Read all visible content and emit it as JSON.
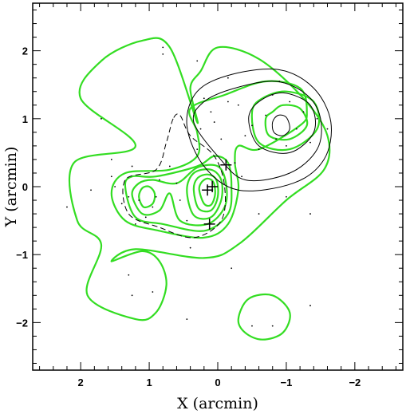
{
  "chart_data": {
    "type": "contour",
    "title": "",
    "xlabel": "X (arcmin)",
    "ylabel": "Y (arcmin)",
    "xlim": [
      2.7,
      -2.7
    ],
    "ylim": [
      -2.7,
      2.7
    ],
    "x_ticks": [
      2,
      1,
      0,
      -1,
      -2
    ],
    "x_tick_labels": [
      "2",
      "1",
      "0",
      "−1",
      "−2"
    ],
    "y_ticks": [
      2,
      1,
      0,
      -1,
      -2
    ],
    "y_tick_labels": [
      "2",
      "1",
      "0",
      "−1",
      "−2"
    ],
    "x_axis_reversed": true,
    "grid": false,
    "colors": {
      "galaxy_density_contours": "#33dd22",
      "other_contours": "#000000",
      "points": "#000000"
    },
    "green_contours": [
      {
        "level": 1,
        "points": [
          [
            1.55,
            -1.1
          ],
          [
            1.2,
            -0.92
          ],
          [
            0.2,
            -1.05
          ],
          [
            -0.3,
            -0.85
          ],
          [
            -1.0,
            -0.2
          ],
          [
            -1.55,
            0.25
          ],
          [
            -1.6,
            0.75
          ],
          [
            -1.25,
            1.3
          ],
          [
            -0.6,
            1.88
          ],
          [
            0.0,
            2.05
          ],
          [
            0.25,
            1.7
          ],
          [
            0.4,
            1.45
          ],
          [
            0.3,
            0.95
          ],
          [
            0.7,
            2.05
          ],
          [
            1.1,
            2.15
          ],
          [
            1.7,
            1.85
          ],
          [
            2.0,
            1.3
          ],
          [
            1.2,
            0.6
          ],
          [
            2.1,
            0.35
          ],
          [
            2.05,
            -0.5
          ],
          [
            1.7,
            -0.85
          ],
          [
            1.9,
            -1.6
          ],
          [
            1.2,
            -1.95
          ],
          [
            0.9,
            -1.85
          ],
          [
            0.75,
            -1.45
          ],
          [
            0.85,
            -1.1
          ],
          [
            1.1,
            -0.95
          ]
        ]
      },
      {
        "level": 2,
        "points": [
          [
            1.55,
            -0.1
          ],
          [
            1.35,
            -0.5
          ],
          [
            0.85,
            -0.65
          ],
          [
            0.2,
            -0.75
          ],
          [
            -0.15,
            -0.55
          ],
          [
            -0.3,
            -0.05
          ],
          [
            -0.25,
            0.35
          ],
          [
            -0.3,
            0.6
          ],
          [
            -0.6,
            0.55
          ],
          [
            -1.2,
            0.9
          ],
          [
            -1.3,
            1.1
          ],
          [
            -1.2,
            1.45
          ],
          [
            -0.7,
            1.55
          ],
          [
            -0.1,
            1.35
          ],
          [
            0.4,
            1.15
          ],
          [
            0.3,
            0.8
          ],
          [
            0.3,
            0.45
          ],
          [
            0.7,
            0.25
          ],
          [
            1.35,
            0.2
          ]
        ]
      },
      {
        "level": 3,
        "points": [
          [
            1.35,
            0.0
          ],
          [
            1.2,
            -0.45
          ],
          [
            0.8,
            -0.55
          ],
          [
            0.2,
            -0.65
          ],
          [
            -0.15,
            -0.4
          ],
          [
            -0.2,
            0.0
          ],
          [
            -0.15,
            0.35
          ],
          [
            0.05,
            0.45
          ],
          [
            0.3,
            0.3
          ],
          [
            0.9,
            0.15
          ],
          [
            1.25,
            0.15
          ]
        ]
      },
      {
        "level": 4,
        "points": [
          [
            1.25,
            -0.12
          ],
          [
            1.1,
            -0.4
          ],
          [
            0.85,
            -0.35
          ],
          [
            0.7,
            -0.1
          ],
          [
            0.55,
            -0.5
          ],
          [
            0.15,
            -0.55
          ],
          [
            -0.1,
            -0.3
          ],
          [
            -0.12,
            0.05
          ],
          [
            0.0,
            0.3
          ],
          [
            0.3,
            0.28
          ],
          [
            0.6,
            0.05
          ],
          [
            0.95,
            0.1
          ],
          [
            1.15,
            0.05
          ]
        ]
      },
      {
        "level": 5,
        "points": [
          [
            0.45,
            -0.05
          ],
          [
            0.35,
            -0.42
          ],
          [
            0.1,
            -0.45
          ],
          [
            -0.05,
            -0.2
          ],
          [
            -0.05,
            0.1
          ],
          [
            0.1,
            0.25
          ],
          [
            0.35,
            0.2
          ]
        ]
      },
      {
        "level": 6,
        "points": [
          [
            0.35,
            -0.05
          ],
          [
            0.28,
            -0.32
          ],
          [
            0.1,
            -0.35
          ],
          [
            0.0,
            -0.15
          ],
          [
            0.02,
            0.1
          ],
          [
            0.15,
            0.18
          ],
          [
            0.3,
            0.12
          ]
        ]
      },
      {
        "level": 7,
        "points": [
          [
            0.27,
            -0.05
          ],
          [
            0.2,
            -0.25
          ],
          [
            0.1,
            -0.27
          ],
          [
            0.04,
            -0.12
          ],
          [
            0.06,
            0.06
          ],
          [
            0.15,
            0.12
          ],
          [
            0.24,
            0.06
          ]
        ]
      },
      {
        "level": 8,
        "points": [
          [
            1.15,
            -0.15
          ],
          [
            1.08,
            -0.3
          ],
          [
            0.95,
            -0.25
          ],
          [
            0.92,
            -0.1
          ],
          [
            1.0,
            0.0
          ],
          [
            1.1,
            -0.02
          ]
        ]
      },
      {
        "level": 9,
        "points": [
          [
            -0.5,
            1.1
          ],
          [
            -0.6,
            0.65
          ],
          [
            -1.05,
            0.55
          ],
          [
            -1.45,
            0.85
          ],
          [
            -1.4,
            1.25
          ],
          [
            -1.0,
            1.4
          ],
          [
            -0.65,
            1.3
          ]
        ]
      },
      {
        "level": 10,
        "points": [
          [
            -0.7,
            1.0
          ],
          [
            -0.75,
            0.75
          ],
          [
            -1.05,
            0.7
          ],
          [
            -1.3,
            0.9
          ],
          [
            -1.2,
            1.15
          ],
          [
            -0.95,
            1.2
          ],
          [
            -0.8,
            1.1
          ]
        ]
      },
      {
        "level": 11,
        "points": [
          [
            -0.3,
            -1.95
          ],
          [
            -0.45,
            -1.65
          ],
          [
            -0.8,
            -1.6
          ],
          [
            -1.05,
            -1.85
          ],
          [
            -0.95,
            -2.15
          ],
          [
            -0.65,
            -2.25
          ],
          [
            -0.4,
            -2.15
          ]
        ]
      }
    ],
    "black_contours": [
      {
        "style": "solid",
        "points": [
          [
            0.45,
            0.9
          ],
          [
            0.2,
            0.3
          ],
          [
            -0.3,
            -0.05
          ],
          [
            -1.1,
            0.05
          ],
          [
            -1.55,
            0.4
          ],
          [
            -1.65,
            0.95
          ],
          [
            -1.4,
            1.45
          ],
          [
            -0.9,
            1.72
          ],
          [
            -0.2,
            1.65
          ],
          [
            0.3,
            1.4
          ]
        ]
      },
      {
        "style": "solid",
        "points": [
          [
            0.35,
            0.95
          ],
          [
            0.0,
            0.45
          ],
          [
            -0.4,
            0.1
          ],
          [
            -1.05,
            0.2
          ],
          [
            -1.45,
            0.55
          ],
          [
            -1.5,
            1.0
          ],
          [
            -1.3,
            1.35
          ],
          [
            -0.85,
            1.55
          ],
          [
            -0.25,
            1.45
          ],
          [
            0.2,
            1.25
          ]
        ]
      },
      {
        "style": "solid",
        "points": [
          [
            -0.45,
            1.0
          ],
          [
            -0.6,
            0.6
          ],
          [
            -1.05,
            0.5
          ],
          [
            -1.4,
            0.8
          ],
          [
            -1.35,
            1.2
          ],
          [
            -0.95,
            1.38
          ],
          [
            -0.6,
            1.25
          ]
        ]
      },
      {
        "style": "solid",
        "points": [
          [
            -0.8,
            0.95
          ],
          [
            -0.82,
            0.8
          ],
          [
            -0.95,
            0.75
          ],
          [
            -1.05,
            0.85
          ],
          [
            -1.0,
            1.02
          ],
          [
            -0.88,
            1.05
          ]
        ]
      },
      {
        "style": "dashed",
        "points": [
          [
            0.65,
            1.0
          ],
          [
            0.75,
            0.65
          ],
          [
            0.9,
            0.25
          ],
          [
            1.35,
            0.1
          ],
          [
            1.3,
            -0.4
          ],
          [
            0.85,
            -0.6
          ],
          [
            0.35,
            -0.75
          ],
          [
            -0.05,
            -0.5
          ],
          [
            -0.1,
            0.0
          ],
          [
            0.05,
            0.45
          ],
          [
            0.4,
            0.75
          ],
          [
            0.55,
            1.05
          ]
        ]
      }
    ],
    "markers": [
      {
        "x": 0.15,
        "y": -0.05
      },
      {
        "x": 0.08,
        "y": 0.0
      },
      {
        "x": -0.12,
        "y": 0.32
      },
      {
        "x": 0.12,
        "y": -0.55
      }
    ],
    "points": [
      [
        2.2,
        -0.3
      ],
      [
        1.85,
        -0.05
      ],
      [
        1.55,
        0.4
      ],
      [
        1.5,
        0.0
      ],
      [
        1.4,
        -0.25
      ],
      [
        1.3,
        -0.15
      ],
      [
        1.25,
        0.3
      ],
      [
        1.15,
        -0.2
      ],
      [
        1.2,
        -0.55
      ],
      [
        1.05,
        -0.45
      ],
      [
        0.95,
        -0.3
      ],
      [
        0.9,
        -0.15
      ],
      [
        0.85,
        0.1
      ],
      [
        0.7,
        0.3
      ],
      [
        0.55,
        -0.2
      ],
      [
        0.45,
        -0.5
      ],
      [
        0.4,
        -0.9
      ],
      [
        0.3,
        0.55
      ],
      [
        0.25,
        0.85
      ],
      [
        0.2,
        1.3
      ],
      [
        0.1,
        1.1
      ],
      [
        0.05,
        0.95
      ],
      [
        -0.05,
        0.7
      ],
      [
        -0.15,
        1.25
      ],
      [
        -0.25,
        0.35
      ],
      [
        -0.35,
        0.15
      ],
      [
        -0.4,
        0.75
      ],
      [
        -0.5,
        0.9
      ],
      [
        -0.6,
        0.55
      ],
      [
        -0.7,
        1.05
      ],
      [
        -0.8,
        1.35
      ],
      [
        -0.85,
        0.7
      ],
      [
        -0.9,
        1.55
      ],
      [
        -1.0,
        0.6
      ],
      [
        -1.05,
        1.25
      ],
      [
        -1.15,
        0.85
      ],
      [
        -1.25,
        1.1
      ],
      [
        -1.35,
        0.65
      ],
      [
        -1.45,
        1.0
      ],
      [
        -1.6,
        0.85
      ],
      [
        1.7,
        1.0
      ],
      [
        1.55,
        0.15
      ],
      [
        0.8,
        2.05
      ],
      [
        0.8,
        1.95
      ],
      [
        0.3,
        1.85
      ],
      [
        -0.15,
        1.6
      ],
      [
        -0.3,
        1.2
      ],
      [
        1.3,
        -1.3
      ],
      [
        1.25,
        -1.6
      ],
      [
        0.95,
        -1.55
      ],
      [
        0.45,
        -1.95
      ],
      [
        -0.2,
        -1.2
      ],
      [
        -0.5,
        -2.05
      ],
      [
        -0.8,
        -2.05
      ],
      [
        -1.35,
        -1.75
      ],
      [
        -0.6,
        -0.4
      ],
      [
        -1.0,
        -0.15
      ],
      [
        -1.35,
        -0.4
      ],
      [
        0.6,
        0.05
      ]
    ]
  }
}
